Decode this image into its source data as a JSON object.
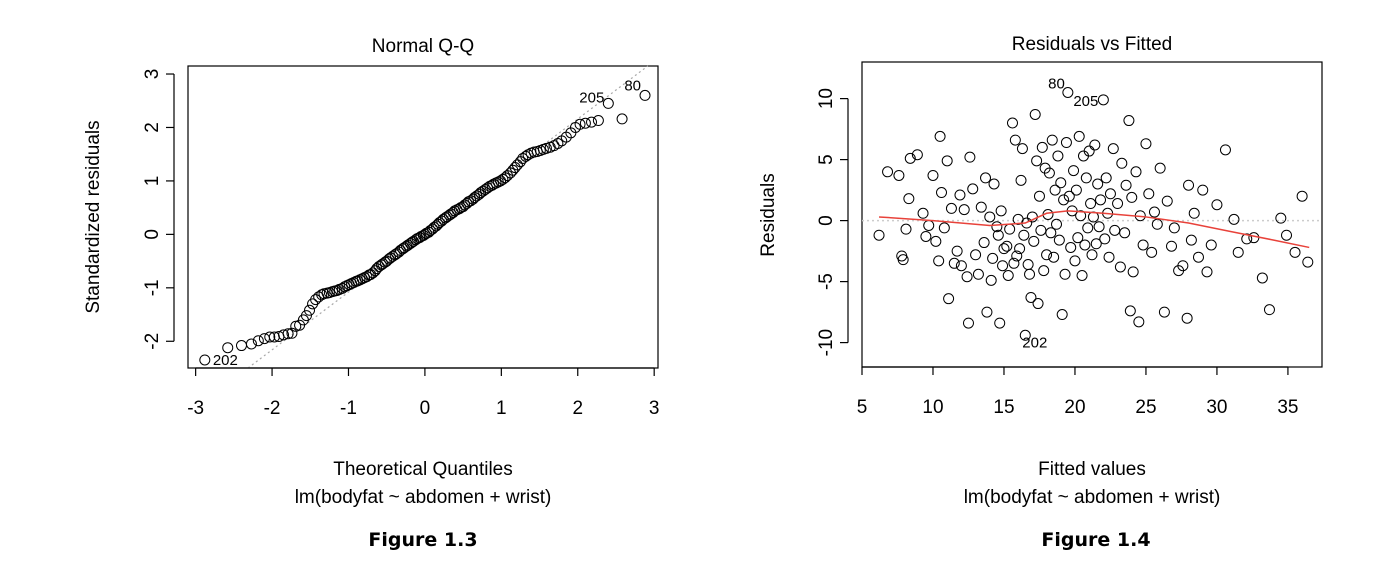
{
  "chart_data": [
    {
      "type": "scatter",
      "title": "Normal Q-Q",
      "xlabel": "Theoretical Quantiles",
      "subtitle": "lm(bodyfat ~ abdomen + wrist)",
      "ylabel": "Standardized residuals",
      "caption": "Figure 1.3",
      "xlim": [
        -3.1,
        3.05
      ],
      "ylim": [
        -2.5,
        3.15
      ],
      "xticks": [
        "-3",
        "-2",
        "-1",
        "0",
        "1",
        "2",
        "3"
      ],
      "yticks": [
        "-2",
        "-1",
        "0",
        "1",
        "2",
        "3"
      ],
      "reference_line": {
        "color": "#a8a8a8",
        "style": "dotted",
        "intercept": 0.0,
        "slope": 1.08
      },
      "labeled_points": [
        {
          "label": "202",
          "x": -2.88,
          "y": -2.35
        },
        {
          "label": "205",
          "x": 2.4,
          "y": 2.45
        },
        {
          "label": "80",
          "x": 2.88,
          "y": 2.6
        }
      ],
      "sample_points": [
        [
          -2.88,
          -2.35
        ],
        [
          -2.58,
          -2.12
        ],
        [
          -2.4,
          -2.08
        ],
        [
          -2.27,
          -2.05
        ],
        [
          -2.18,
          -1.99
        ],
        [
          -2.1,
          -1.95
        ],
        [
          -2.03,
          -1.92
        ],
        [
          -1.97,
          -1.92
        ],
        [
          -1.91,
          -1.91
        ],
        [
          -1.85,
          -1.88
        ],
        [
          -1.79,
          -1.86
        ],
        [
          -1.74,
          -1.85
        ],
        [
          -1.69,
          -1.72
        ],
        [
          -1.64,
          -1.7
        ],
        [
          -1.59,
          -1.6
        ],
        [
          -1.55,
          -1.52
        ],
        [
          -1.51,
          -1.42
        ],
        [
          -1.47,
          -1.3
        ],
        [
          -1.43,
          -1.22
        ],
        [
          -1.39,
          -1.17
        ],
        [
          -1.35,
          -1.13
        ],
        [
          -1.32,
          -1.11
        ],
        [
          -1.28,
          -1.1
        ],
        [
          -1.25,
          -1.09
        ],
        [
          -1.21,
          -1.07
        ],
        [
          -1.18,
          -1.06
        ],
        [
          -1.15,
          -1.05
        ],
        [
          -1.12,
          -1.03
        ],
        [
          -1.08,
          -1.01
        ],
        [
          -1.05,
          -0.98
        ],
        [
          -1.02,
          -0.96
        ],
        [
          -0.99,
          -0.94
        ],
        [
          -0.96,
          -0.92
        ],
        [
          -0.93,
          -0.9
        ],
        [
          -0.9,
          -0.88
        ],
        [
          -0.88,
          -0.87
        ],
        [
          -0.85,
          -0.85
        ],
        [
          -0.82,
          -0.83
        ],
        [
          -0.79,
          -0.81
        ],
        [
          -0.76,
          -0.79
        ],
        [
          -0.73,
          -0.76
        ],
        [
          -0.71,
          -0.75
        ],
        [
          -0.68,
          -0.72
        ],
        [
          -0.65,
          -0.68
        ],
        [
          -0.63,
          -0.64
        ],
        [
          -0.6,
          -0.6
        ],
        [
          -0.57,
          -0.57
        ],
        [
          -0.55,
          -0.55
        ],
        [
          -0.52,
          -0.52
        ],
        [
          -0.5,
          -0.5
        ],
        [
          -0.47,
          -0.46
        ],
        [
          -0.45,
          -0.44
        ],
        [
          -0.42,
          -0.41
        ],
        [
          -0.39,
          -0.38
        ],
        [
          -0.37,
          -0.36
        ],
        [
          -0.34,
          -0.33
        ],
        [
          -0.32,
          -0.3
        ],
        [
          -0.29,
          -0.27
        ],
        [
          -0.27,
          -0.25
        ],
        [
          -0.24,
          -0.22
        ],
        [
          -0.22,
          -0.2
        ],
        [
          -0.19,
          -0.17
        ],
        [
          -0.17,
          -0.15
        ],
        [
          -0.15,
          -0.13
        ],
        [
          -0.12,
          -0.1
        ],
        [
          -0.1,
          -0.08
        ],
        [
          -0.07,
          -0.06
        ],
        [
          -0.05,
          -0.04
        ],
        [
          -0.02,
          -0.02
        ],
        [
          0.0,
          0.0
        ],
        [
          0.02,
          0.02
        ],
        [
          0.05,
          0.04
        ],
        [
          0.07,
          0.07
        ],
        [
          0.1,
          0.1
        ],
        [
          0.12,
          0.13
        ],
        [
          0.15,
          0.16
        ],
        [
          0.17,
          0.19
        ],
        [
          0.19,
          0.22
        ],
        [
          0.22,
          0.25
        ],
        [
          0.24,
          0.28
        ],
        [
          0.27,
          0.31
        ],
        [
          0.29,
          0.33
        ],
        [
          0.32,
          0.36
        ],
        [
          0.34,
          0.38
        ],
        [
          0.37,
          0.41
        ],
        [
          0.39,
          0.44
        ],
        [
          0.42,
          0.46
        ],
        [
          0.45,
          0.48
        ],
        [
          0.47,
          0.5
        ],
        [
          0.5,
          0.52
        ],
        [
          0.52,
          0.55
        ],
        [
          0.55,
          0.58
        ],
        [
          0.57,
          0.61
        ],
        [
          0.6,
          0.63
        ],
        [
          0.63,
          0.66
        ],
        [
          0.65,
          0.69
        ],
        [
          0.68,
          0.72
        ],
        [
          0.71,
          0.75
        ],
        [
          0.73,
          0.78
        ],
        [
          0.76,
          0.81
        ],
        [
          0.79,
          0.84
        ],
        [
          0.82,
          0.87
        ],
        [
          0.85,
          0.9
        ],
        [
          0.88,
          0.92
        ],
        [
          0.9,
          0.94
        ],
        [
          0.93,
          0.96
        ],
        [
          0.96,
          0.98
        ],
        [
          0.99,
          1.0
        ],
        [
          1.02,
          1.03
        ],
        [
          1.05,
          1.06
        ],
        [
          1.08,
          1.1
        ],
        [
          1.12,
          1.15
        ],
        [
          1.15,
          1.2
        ],
        [
          1.18,
          1.25
        ],
        [
          1.21,
          1.3
        ],
        [
          1.25,
          1.36
        ],
        [
          1.28,
          1.42
        ],
        [
          1.32,
          1.46
        ],
        [
          1.35,
          1.49
        ],
        [
          1.39,
          1.52
        ],
        [
          1.43,
          1.54
        ],
        [
          1.47,
          1.55
        ],
        [
          1.51,
          1.57
        ],
        [
          1.55,
          1.59
        ],
        [
          1.59,
          1.61
        ],
        [
          1.64,
          1.63
        ],
        [
          1.69,
          1.66
        ],
        [
          1.74,
          1.7
        ],
        [
          1.79,
          1.75
        ],
        [
          1.85,
          1.82
        ],
        [
          1.91,
          1.9
        ],
        [
          1.97,
          2.0
        ],
        [
          2.03,
          2.06
        ],
        [
          2.1,
          2.08
        ],
        [
          2.18,
          2.1
        ],
        [
          2.27,
          2.13
        ],
        [
          2.4,
          2.45
        ],
        [
          2.58,
          2.16
        ],
        [
          2.88,
          2.6
        ]
      ]
    },
    {
      "type": "scatter",
      "title": "Residuals vs Fitted",
      "xlabel": "Fitted values",
      "subtitle": "lm(bodyfat ~ abdomen + wrist)",
      "ylabel": "Residuals",
      "caption": "Figure 1.4",
      "xlim": [
        5,
        37.4
      ],
      "ylim": [
        -12,
        13
      ],
      "xticks": [
        "5",
        "10",
        "15",
        "20",
        "25",
        "30",
        "35"
      ],
      "yticks": [
        "-10",
        "-5",
        "0",
        "5",
        "10"
      ],
      "zero_line": {
        "color": "#cccccc",
        "style": "dotted",
        "y": 0
      },
      "smooth_line": {
        "color": "#e8423a",
        "points": [
          [
            6.2,
            0.3
          ],
          [
            10,
            0.0
          ],
          [
            14,
            -0.4
          ],
          [
            16.5,
            -0.2
          ],
          [
            18,
            0.6
          ],
          [
            19.5,
            0.8
          ],
          [
            22,
            0.6
          ],
          [
            25,
            0.3
          ],
          [
            28,
            -0.2
          ],
          [
            31,
            -0.9
          ],
          [
            34,
            -1.6
          ],
          [
            36.5,
            -2.2
          ]
        ]
      },
      "labeled_points": [
        {
          "label": "80",
          "x": 19.5,
          "y": 10.5
        },
        {
          "label": "205",
          "x": 22,
          "y": 9.9
        },
        {
          "label": "202",
          "x": 16.5,
          "y": -9.4
        }
      ],
      "points": [
        [
          6.2,
          -1.2
        ],
        [
          6.8,
          4.0
        ],
        [
          7.6,
          3.7
        ],
        [
          7.8,
          -2.9
        ],
        [
          7.9,
          -3.2
        ],
        [
          8.3,
          1.8
        ],
        [
          8.1,
          -0.7
        ],
        [
          8.4,
          5.1
        ],
        [
          8.9,
          5.4
        ],
        [
          9.3,
          0.6
        ],
        [
          9.5,
          -1.3
        ],
        [
          9.7,
          -0.4
        ],
        [
          10.0,
          3.7
        ],
        [
          10.2,
          -1.7
        ],
        [
          10.5,
          6.9
        ],
        [
          10.4,
          -3.3
        ],
        [
          10.6,
          2.3
        ],
        [
          10.8,
          -0.6
        ],
        [
          11.0,
          4.9
        ],
        [
          11.1,
          -6.4
        ],
        [
          11.3,
          1.0
        ],
        [
          11.5,
          -3.5
        ],
        [
          11.7,
          -2.5
        ],
        [
          11.9,
          2.1
        ],
        [
          12.0,
          -3.7
        ],
        [
          12.2,
          0.9
        ],
        [
          12.4,
          -4.6
        ],
        [
          12.5,
          -8.4
        ],
        [
          12.6,
          5.2
        ],
        [
          12.8,
          2.6
        ],
        [
          13.0,
          -2.8
        ],
        [
          13.2,
          -4.4
        ],
        [
          13.4,
          1.1
        ],
        [
          13.6,
          -1.8
        ],
        [
          13.7,
          3.5
        ],
        [
          13.8,
          -7.5
        ],
        [
          14.0,
          0.3
        ],
        [
          14.1,
          -4.9
        ],
        [
          14.2,
          -3.1
        ],
        [
          14.3,
          3.0
        ],
        [
          14.5,
          -0.5
        ],
        [
          14.6,
          -1.2
        ],
        [
          14.7,
          -8.4
        ],
        [
          14.8,
          0.8
        ],
        [
          14.9,
          -3.7
        ],
        [
          15.0,
          -2.3
        ],
        [
          15.2,
          -2.1
        ],
        [
          15.3,
          -4.5
        ],
        [
          15.4,
          -0.7
        ],
        [
          15.6,
          8.0
        ],
        [
          15.7,
          -3.5
        ],
        [
          15.8,
          6.6
        ],
        [
          15.9,
          -2.9
        ],
        [
          16.0,
          0.1
        ],
        [
          16.1,
          -2.3
        ],
        [
          16.2,
          3.3
        ],
        [
          16.3,
          5.9
        ],
        [
          16.4,
          -1.2
        ],
        [
          16.5,
          -9.4
        ],
        [
          16.6,
          -0.2
        ],
        [
          16.7,
          -3.6
        ],
        [
          16.8,
          -4.4
        ],
        [
          16.9,
          -6.3
        ],
        [
          17.0,
          0.3
        ],
        [
          17.1,
          -1.7
        ],
        [
          17.2,
          8.7
        ],
        [
          17.3,
          4.9
        ],
        [
          17.4,
          -6.8
        ],
        [
          17.5,
          2.0
        ],
        [
          17.6,
          -0.8
        ],
        [
          17.7,
          6.0
        ],
        [
          17.8,
          -4.1
        ],
        [
          17.9,
          4.3
        ],
        [
          18.0,
          -2.8
        ],
        [
          18.1,
          0.5
        ],
        [
          18.2,
          3.9
        ],
        [
          18.3,
          -1.0
        ],
        [
          18.4,
          6.6
        ],
        [
          18.5,
          -3.0
        ],
        [
          18.6,
          2.5
        ],
        [
          18.7,
          -0.3
        ],
        [
          18.8,
          5.3
        ],
        [
          18.9,
          -1.6
        ],
        [
          19.0,
          3.1
        ],
        [
          19.1,
          -7.7
        ],
        [
          19.2,
          1.7
        ],
        [
          19.3,
          -4.4
        ],
        [
          19.4,
          6.4
        ],
        [
          19.5,
          10.5
        ],
        [
          19.6,
          2.0
        ],
        [
          19.7,
          -2.2
        ],
        [
          19.8,
          0.8
        ],
        [
          19.9,
          4.1
        ],
        [
          20.0,
          -3.3
        ],
        [
          20.1,
          2.5
        ],
        [
          20.2,
          -1.4
        ],
        [
          20.3,
          6.9
        ],
        [
          20.4,
          0.4
        ],
        [
          20.5,
          -4.5
        ],
        [
          20.6,
          5.3
        ],
        [
          20.7,
          -2.0
        ],
        [
          20.8,
          3.5
        ],
        [
          20.9,
          -0.6
        ],
        [
          21.0,
          5.7
        ],
        [
          21.1,
          1.4
        ],
        [
          21.2,
          -2.8
        ],
        [
          21.3,
          0.3
        ],
        [
          21.4,
          6.2
        ],
        [
          21.5,
          -1.9
        ],
        [
          21.6,
          3.0
        ],
        [
          21.7,
          -0.5
        ],
        [
          21.8,
          1.7
        ],
        [
          22.0,
          9.9
        ],
        [
          22.1,
          -1.5
        ],
        [
          22.2,
          3.5
        ],
        [
          22.3,
          0.6
        ],
        [
          22.4,
          -3.0
        ],
        [
          22.5,
          2.2
        ],
        [
          22.7,
          5.9
        ],
        [
          22.8,
          -0.8
        ],
        [
          23.0,
          1.4
        ],
        [
          23.2,
          -3.8
        ],
        [
          23.3,
          4.7
        ],
        [
          23.5,
          -1.0
        ],
        [
          23.6,
          2.9
        ],
        [
          23.8,
          8.2
        ],
        [
          23.9,
          -7.4
        ],
        [
          24.0,
          1.9
        ],
        [
          24.1,
          -4.2
        ],
        [
          24.3,
          4.0
        ],
        [
          24.5,
          -8.3
        ],
        [
          24.6,
          0.4
        ],
        [
          24.8,
          -2.0
        ],
        [
          25.0,
          6.3
        ],
        [
          25.2,
          2.2
        ],
        [
          25.4,
          -2.6
        ],
        [
          25.6,
          0.7
        ],
        [
          25.8,
          -0.3
        ],
        [
          26.0,
          4.3
        ],
        [
          26.3,
          -7.5
        ],
        [
          26.5,
          1.6
        ],
        [
          26.8,
          -2.1
        ],
        [
          27.0,
          -0.6
        ],
        [
          27.3,
          -4.1
        ],
        [
          27.6,
          -3.7
        ],
        [
          27.9,
          -8.0
        ],
        [
          28.0,
          2.9
        ],
        [
          28.2,
          -1.6
        ],
        [
          28.4,
          0.6
        ],
        [
          28.7,
          -3.0
        ],
        [
          29.0,
          2.5
        ],
        [
          29.3,
          -4.2
        ],
        [
          29.6,
          -2.0
        ],
        [
          30.0,
          1.3
        ],
        [
          30.6,
          5.8
        ],
        [
          31.2,
          0.1
        ],
        [
          31.5,
          -2.6
        ],
        [
          32.1,
          -1.5
        ],
        [
          32.6,
          -1.4
        ],
        [
          33.2,
          -4.7
        ],
        [
          33.7,
          -7.3
        ],
        [
          34.5,
          0.2
        ],
        [
          34.9,
          -1.2
        ],
        [
          35.5,
          -2.6
        ],
        [
          36.0,
          2.0
        ],
        [
          36.4,
          -3.4
        ]
      ]
    }
  ]
}
